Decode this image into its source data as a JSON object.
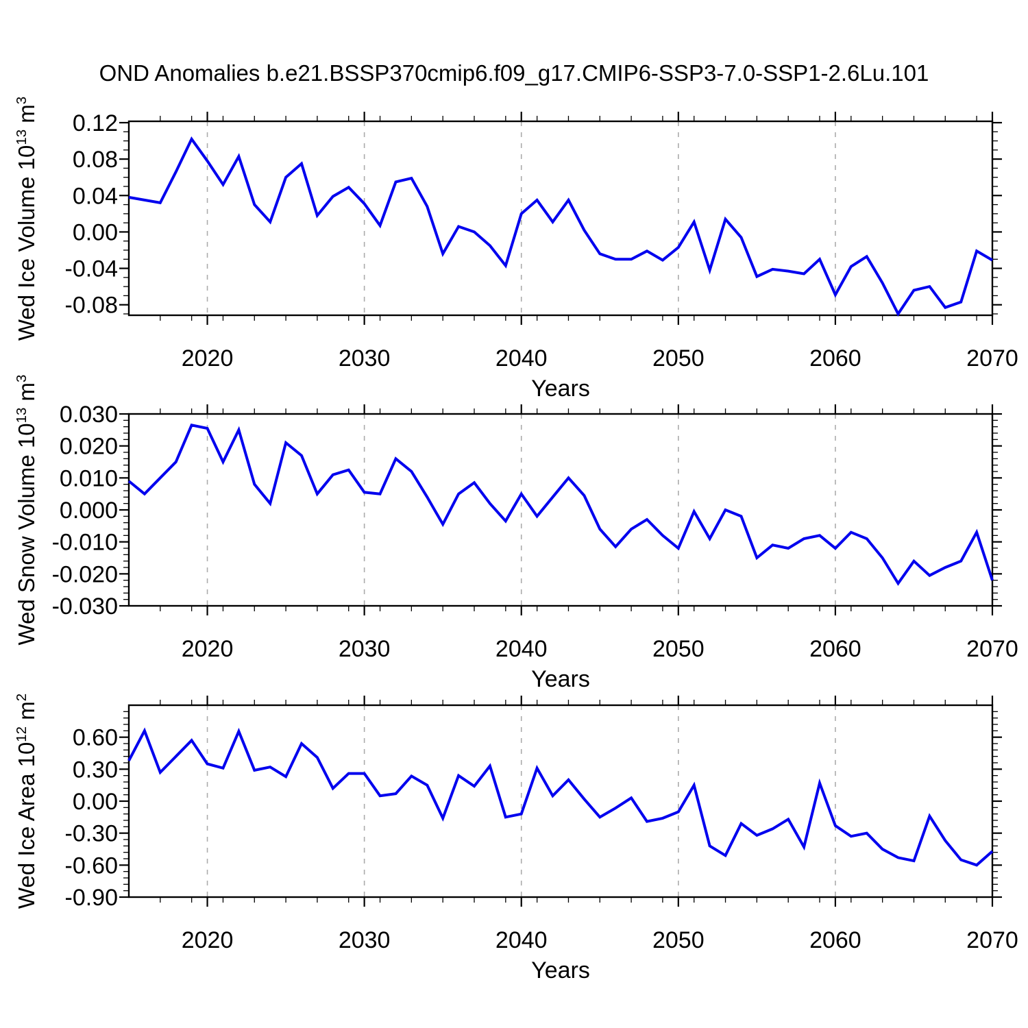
{
  "title": "OND Anomalies b.e21.BSSP370cmip6.f09_g17.CMIP6-SSP3-7.0-SSP1-2.6Lu.101",
  "colors": {
    "line": "#0101EE",
    "grid": "#ABABAB",
    "axis": "#000000",
    "text": "#000000",
    "background": "#FFFFFF"
  },
  "x_axis": {
    "label": "Years",
    "range": [
      2015,
      2070
    ],
    "major_ticks": [
      2020,
      2030,
      2040,
      2050,
      2060,
      2070
    ],
    "minor_step": 2,
    "gridline_years": [
      2020,
      2030,
      2040,
      2050,
      2060
    ]
  },
  "chart_data": [
    {
      "type": "line",
      "title": "",
      "xlabel": "Years",
      "ylabel_text": "Wed Ice Volume 10^13 m^3",
      "ylabel": {
        "base": "Wed Ice Volume 10",
        "sup": "13",
        "unit": " m",
        "unit_sup": "3"
      },
      "ylim": [
        -0.0915,
        0.1215
      ],
      "y_major_ticks": [
        0.12,
        0.08,
        0.04,
        0.0,
        -0.04,
        -0.08
      ],
      "y_major_step": 0.04,
      "y_minor_step": 0.01,
      "tick_decimals": 2,
      "x": [
        2015,
        2016,
        2017,
        2018,
        2019,
        2020,
        2021,
        2022,
        2023,
        2024,
        2025,
        2026,
        2027,
        2028,
        2029,
        2030,
        2031,
        2032,
        2033,
        2034,
        2035,
        2036,
        2037,
        2038,
        2039,
        2040,
        2041,
        2042,
        2043,
        2044,
        2045,
        2046,
        2047,
        2048,
        2049,
        2050,
        2051,
        2052,
        2053,
        2054,
        2055,
        2056,
        2057,
        2058,
        2059,
        2060,
        2061,
        2062,
        2063,
        2064,
        2065,
        2066,
        2067,
        2068,
        2069,
        2070
      ],
      "values": [
        0.038,
        0.035,
        0.032,
        0.066,
        0.102,
        0.078,
        0.052,
        0.083,
        0.03,
        0.011,
        0.06,
        0.075,
        0.018,
        0.039,
        0.049,
        0.031,
        0.007,
        0.055,
        0.059,
        0.028,
        -0.024,
        0.006,
        0.0,
        -0.015,
        -0.037,
        0.02,
        0.035,
        0.011,
        0.035,
        0.002,
        -0.024,
        -0.03,
        -0.03,
        -0.021,
        -0.031,
        -0.017,
        0.011,
        -0.042,
        0.014,
        -0.006,
        -0.049,
        -0.041,
        -0.043,
        -0.046,
        -0.03,
        -0.069,
        -0.038,
        -0.027,
        -0.056,
        -0.09,
        -0.064,
        -0.06,
        -0.083,
        -0.077,
        -0.021,
        -0.031
      ]
    },
    {
      "type": "line",
      "title": "",
      "xlabel": "Years",
      "ylabel_text": "Wed Snow Volume 10^13 m^3",
      "ylabel": {
        "base": "Wed Snow Volume 10",
        "sup": "13",
        "unit": " m",
        "unit_sup": "3"
      },
      "ylim": [
        -0.03,
        0.03
      ],
      "y_major_ticks": [
        0.03,
        0.02,
        0.01,
        0.0,
        -0.01,
        -0.02,
        -0.03
      ],
      "y_major_step": 0.01,
      "y_minor_step": 0.002,
      "tick_decimals": 3,
      "x": [
        2015,
        2016,
        2017,
        2018,
        2019,
        2020,
        2021,
        2022,
        2023,
        2024,
        2025,
        2026,
        2027,
        2028,
        2029,
        2030,
        2031,
        2032,
        2033,
        2034,
        2035,
        2036,
        2037,
        2038,
        2039,
        2040,
        2041,
        2042,
        2043,
        2044,
        2045,
        2046,
        2047,
        2048,
        2049,
        2050,
        2051,
        2052,
        2053,
        2054,
        2055,
        2056,
        2057,
        2058,
        2059,
        2060,
        2061,
        2062,
        2063,
        2064,
        2065,
        2066,
        2067,
        2068,
        2069,
        2070
      ],
      "values": [
        0.009,
        0.005,
        0.01,
        0.015,
        0.0265,
        0.0255,
        0.015,
        0.025,
        0.008,
        0.002,
        0.021,
        0.017,
        0.005,
        0.011,
        0.0125,
        0.0055,
        0.005,
        0.016,
        0.012,
        0.004,
        -0.0045,
        0.005,
        0.0085,
        0.002,
        -0.0035,
        0.005,
        -0.002,
        0.004,
        0.01,
        0.0045,
        -0.006,
        -0.0115,
        -0.006,
        -0.003,
        -0.008,
        -0.012,
        -0.0005,
        -0.009,
        0.0,
        -0.002,
        -0.015,
        -0.011,
        -0.012,
        -0.009,
        -0.008,
        -0.012,
        -0.007,
        -0.009,
        -0.015,
        -0.023,
        -0.016,
        -0.0205,
        -0.018,
        -0.016,
        -0.007,
        -0.022
      ]
    },
    {
      "type": "line",
      "title": "",
      "xlabel": "Years",
      "ylabel_text": "Wed Ice Area 10^12 m^2",
      "ylabel": {
        "base": "Wed Ice Area 10",
        "sup": "12",
        "unit": " m",
        "unit_sup": "2"
      },
      "ylim": [
        -0.9,
        0.9
      ],
      "y_major_ticks": [
        0.6,
        0.3,
        0.0,
        -0.3,
        -0.6,
        -0.9
      ],
      "y_major_step": 0.3,
      "y_minor_step": 0.06,
      "tick_decimals": 2,
      "x": [
        2015,
        2016,
        2017,
        2018,
        2019,
        2020,
        2021,
        2022,
        2023,
        2024,
        2025,
        2026,
        2027,
        2028,
        2029,
        2030,
        2031,
        2032,
        2033,
        2034,
        2035,
        2036,
        2037,
        2038,
        2039,
        2040,
        2041,
        2042,
        2043,
        2044,
        2045,
        2046,
        2047,
        2048,
        2049,
        2050,
        2051,
        2052,
        2053,
        2054,
        2055,
        2056,
        2057,
        2058,
        2059,
        2060,
        2061,
        2062,
        2063,
        2064,
        2065,
        2066,
        2067,
        2068,
        2069,
        2070
      ],
      "values": [
        0.38,
        0.66,
        0.27,
        0.42,
        0.57,
        0.35,
        0.31,
        0.655,
        0.29,
        0.32,
        0.23,
        0.54,
        0.41,
        0.12,
        0.26,
        0.26,
        0.05,
        0.07,
        0.235,
        0.15,
        -0.16,
        0.24,
        0.14,
        0.33,
        -0.15,
        -0.12,
        0.31,
        0.05,
        0.2,
        0.02,
        -0.15,
        -0.065,
        0.03,
        -0.19,
        -0.16,
        -0.1,
        0.15,
        -0.42,
        -0.51,
        -0.21,
        -0.32,
        -0.26,
        -0.17,
        -0.43,
        0.17,
        -0.23,
        -0.33,
        -0.3,
        -0.45,
        -0.53,
        -0.56,
        -0.14,
        -0.37,
        -0.55,
        -0.6,
        -0.47
      ]
    }
  ]
}
